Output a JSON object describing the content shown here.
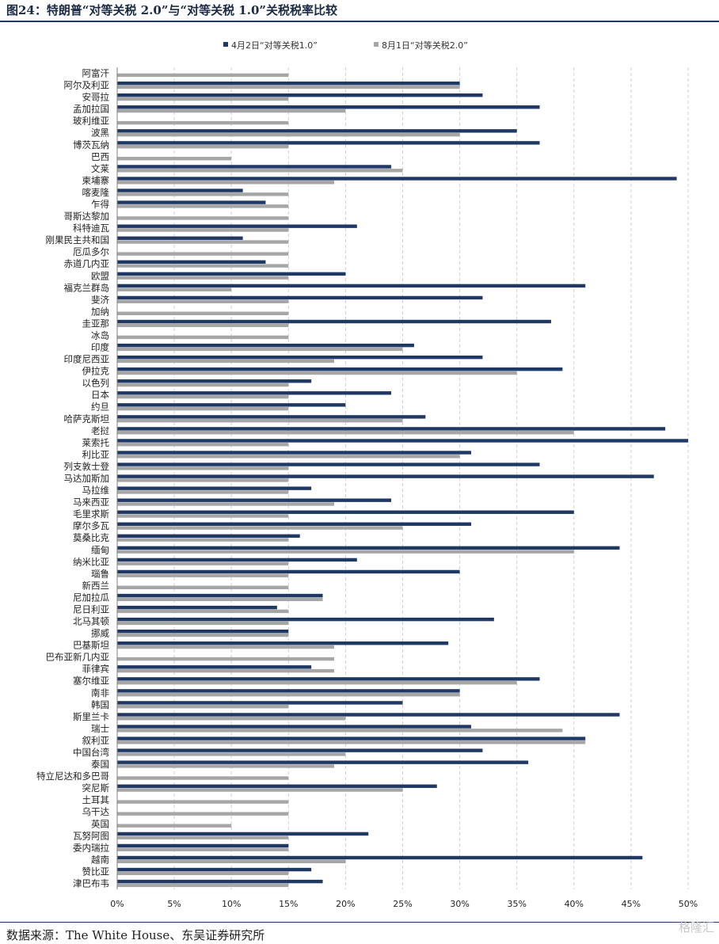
{
  "figure": {
    "title": "图24：特朗普“对等关税 2.0”与“对等关税 1.0”关税税率比较",
    "source": "数据来源：The White House、东吴证券研究所",
    "watermark": "格隆汇"
  },
  "chart_data": {
    "type": "bar",
    "orientation": "horizontal",
    "xlim": [
      0,
      50
    ],
    "x_ticks": [
      "0%",
      "5%",
      "10%",
      "15%",
      "20%",
      "25%",
      "30%",
      "35%",
      "40%",
      "45%",
      "50%"
    ],
    "grid": "vertical dashed",
    "legend_position": "top",
    "categories": [
      "阿富汗",
      "阿尔及利亚",
      "安哥拉",
      "孟加拉国",
      "玻利维亚",
      "波黑",
      "博茨瓦纳",
      "巴西",
      "文莱",
      "柬埔寨",
      "喀麦隆",
      "乍得",
      "哥斯达黎加",
      "科特迪瓦",
      "刚果民主共和国",
      "厄瓜多尔",
      "赤道几内亚",
      "欧盟",
      "福克兰群岛",
      "斐济",
      "加纳",
      "圭亚那",
      "冰岛",
      "印度",
      "印度尼西亚",
      "伊拉克",
      "以色列",
      "日本",
      "约旦",
      "哈萨克斯坦",
      "老挝",
      "莱索托",
      "利比亚",
      "列支敦士登",
      "马达加斯加",
      "马拉维",
      "马来西亚",
      "毛里求斯",
      "摩尔多瓦",
      "莫桑比克",
      "缅甸",
      "纳米比亚",
      "瑙鲁",
      "新西兰",
      "尼加拉瓜",
      "尼日利亚",
      "北马其顿",
      "挪威",
      "巴基斯坦",
      "巴布亚新几内亚",
      "菲律宾",
      "塞尔维亚",
      "南非",
      "韩国",
      "斯里兰卡",
      "瑞士",
      "叙利亚",
      "中国台湾",
      "泰国",
      "特立尼达和多巴哥",
      "突尼斯",
      "土耳其",
      "乌干达",
      "英国",
      "瓦努阿图",
      "委内瑞拉",
      "越南",
      "赞比亚",
      "津巴布韦"
    ],
    "series": [
      {
        "name": "4月2日“对等关税1.0”",
        "color": "#1f3864",
        "values": [
          null,
          30,
          32,
          37,
          null,
          35,
          37,
          null,
          24,
          49,
          11,
          13,
          null,
          21,
          11,
          null,
          13,
          20,
          41,
          32,
          null,
          38,
          null,
          26,
          32,
          39,
          17,
          24,
          20,
          27,
          48,
          50,
          31,
          37,
          47,
          17,
          24,
          40,
          31,
          16,
          44,
          21,
          30,
          null,
          18,
          14,
          33,
          15,
          29,
          null,
          17,
          37,
          30,
          25,
          44,
          31,
          41,
          32,
          36,
          null,
          28,
          null,
          null,
          null,
          22,
          15,
          46,
          17,
          18
        ]
      },
      {
        "name": "8月1日“对等关税2.0”",
        "color": "#a6a6a6",
        "values": [
          15,
          30,
          15,
          20,
          15,
          30,
          15,
          10,
          25,
          19,
          15,
          15,
          15,
          15,
          15,
          15,
          15,
          15,
          10,
          15,
          15,
          15,
          15,
          25,
          19,
          35,
          15,
          15,
          15,
          25,
          40,
          15,
          30,
          15,
          15,
          15,
          19,
          15,
          25,
          15,
          40,
          15,
          15,
          15,
          18,
          15,
          15,
          15,
          19,
          19,
          19,
          35,
          30,
          15,
          20,
          39,
          41,
          20,
          19,
          15,
          25,
          15,
          15,
          10,
          15,
          15,
          20,
          15,
          15
        ]
      }
    ]
  }
}
